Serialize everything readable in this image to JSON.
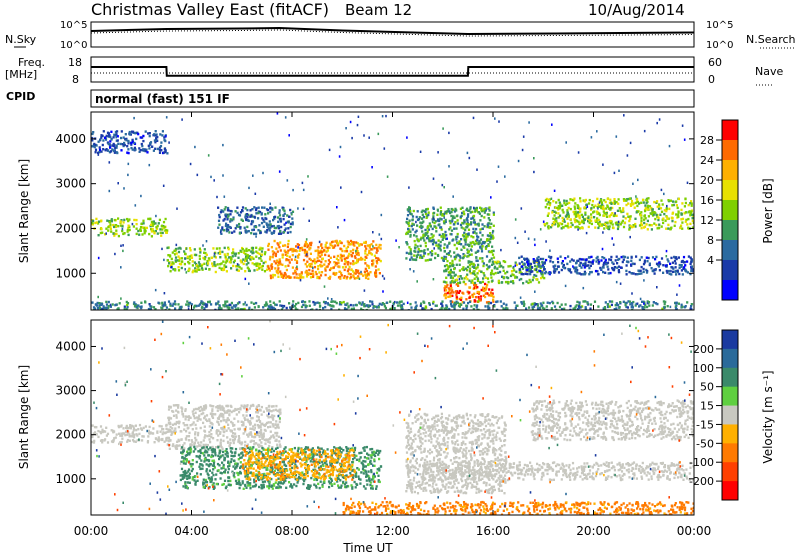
{
  "header": {
    "title": "Christmas Valley East (fitACF)",
    "beam": "Beam 12",
    "date": "10/Aug/2014"
  },
  "strip_noise": {
    "left_label": "N.Sky",
    "left_ticks": [
      "10^5",
      "10^0"
    ],
    "right_label": "N.Search",
    "right_ticks": [
      "10^5",
      "10^0"
    ]
  },
  "strip_freq": {
    "left_label_1": "Freq.",
    "left_label_2": "[MHz]",
    "left_ticks": [
      "18",
      "8"
    ],
    "right_label": "Nave",
    "right_ticks": [
      "60",
      "0"
    ]
  },
  "cpid": {
    "label": "CPID",
    "mode": "normal (fast) 151 IF"
  },
  "power_colorbar": {
    "label": "Power [dB]",
    "ticks": [
      "28",
      "24",
      "20",
      "16",
      "12",
      "8",
      "4"
    ],
    "colors": [
      "#ff0000",
      "#ff6a00",
      "#ffb000",
      "#e8e000",
      "#7fd000",
      "#3a9a5a",
      "#2a6aa0",
      "#1a3aa8",
      "#0000ff"
    ]
  },
  "velocity_colorbar": {
    "label": "Velocity [m s⁻¹]",
    "ticks": [
      "200",
      "100",
      "50",
      "15",
      "-15",
      "-50",
      "-100",
      "-200"
    ],
    "colors": [
      "#1a3aa0",
      "#2a6a9a",
      "#3a8a6a",
      "#5fd040",
      "#c8c8c0",
      "#ffb000",
      "#ff7a00",
      "#ff4000",
      "#ff0000"
    ]
  },
  "chart_data": [
    {
      "type": "line",
      "panel": "noise",
      "series": [
        {
          "name": "N.Sky",
          "x": [
            "00:00",
            "03:00",
            "06:00",
            "07:30",
            "10:00",
            "15:00",
            "18:30",
            "24:00"
          ],
          "y": [
            3.2,
            3.6,
            3.7,
            3.8,
            3.3,
            2.6,
            2.7,
            2.9
          ]
        }
      ],
      "ylim": [
        0,
        5
      ]
    },
    {
      "type": "line",
      "panel": "frequency",
      "series": [
        {
          "name": "Freq. [MHz]",
          "x": [
            "00:00",
            "03:00",
            "03:01",
            "15:00",
            "15:01",
            "24:00"
          ],
          "y": [
            14,
            14,
            10.5,
            10.5,
            14,
            14
          ]
        },
        {
          "name": "Nave",
          "x": [
            "00:00",
            "24:00"
          ],
          "y": [
            22,
            22
          ]
        }
      ]
    },
    {
      "type": "heatmap",
      "panel": "power",
      "xlabel": "Time UT",
      "ylabel": "Slant Range [km]",
      "xlim": [
        "00:00",
        "24:00"
      ],
      "ylim": [
        180,
        4600
      ],
      "x_ticks": [
        "00:00",
        "04:00",
        "08:00",
        "12:00",
        "16:00",
        "20:00",
        "00:00"
      ],
      "y_ticks": [
        1000,
        2000,
        3000,
        4000
      ],
      "regions": [
        {
          "t0": 0.0,
          "t1": 3.0,
          "r0": 1850,
          "r1": 2250,
          "level": 18
        },
        {
          "t0": 3.0,
          "t1": 7.0,
          "r0": 1050,
          "r1": 1600,
          "level": 18
        },
        {
          "t0": 5.0,
          "t1": 8.0,
          "r0": 1900,
          "r1": 2500,
          "level": 10
        },
        {
          "t0": 7.0,
          "t1": 11.5,
          "r0": 900,
          "r1": 1750,
          "level": 26
        },
        {
          "t0": 12.5,
          "t1": 16.0,
          "r0": 1300,
          "r1": 2500,
          "level": 14
        },
        {
          "t0": 14.0,
          "t1": 16.0,
          "r0": 350,
          "r1": 800,
          "level": 28
        },
        {
          "t0": 14.0,
          "t1": 18.0,
          "r0": 800,
          "r1": 1300,
          "level": 16
        },
        {
          "t0": 18.0,
          "t1": 24.0,
          "r0": 2000,
          "r1": 2700,
          "level": 18
        },
        {
          "t0": 17.0,
          "t1": 24.0,
          "r0": 1000,
          "r1": 1400,
          "level": 8
        },
        {
          "t0": 0.0,
          "t1": 24.0,
          "r0": 200,
          "r1": 400,
          "level": 12
        },
        {
          "t0": 0.0,
          "t1": 3.0,
          "r0": 3700,
          "r1": 4200,
          "level": 8
        }
      ]
    },
    {
      "type": "heatmap",
      "panel": "velocity",
      "xlabel": "Time UT",
      "ylabel": "Slant Range [km]",
      "xlim": [
        "00:00",
        "24:00"
      ],
      "ylim": [
        180,
        4600
      ],
      "x_ticks": [
        "00:00",
        "04:00",
        "08:00",
        "12:00",
        "16:00",
        "20:00",
        "00:00"
      ],
      "y_ticks": [
        1000,
        2000,
        3000,
        4000
      ],
      "regions": [
        {
          "t0": 0.0,
          "t1": 3.0,
          "r0": 1850,
          "r1": 2250,
          "level": 0
        },
        {
          "t0": 3.0,
          "t1": 7.5,
          "r0": 1700,
          "r1": 2700,
          "level": 0
        },
        {
          "t0": 3.5,
          "t1": 11.5,
          "r0": 800,
          "r1": 1750,
          "level": 40
        },
        {
          "t0": 6.0,
          "t1": 10.5,
          "r0": 1000,
          "r1": 1700,
          "level": -40
        },
        {
          "t0": 12.5,
          "t1": 16.5,
          "r0": 700,
          "r1": 2500,
          "level": 0
        },
        {
          "t0": 10.0,
          "t1": 24.0,
          "r0": 200,
          "r1": 500,
          "level": -60
        },
        {
          "t0": 17.5,
          "t1": 24.0,
          "r0": 1900,
          "r1": 2800,
          "level": 0
        },
        {
          "t0": 13.0,
          "t1": 24.0,
          "r0": 1000,
          "r1": 1400,
          "level": 0
        }
      ]
    }
  ]
}
